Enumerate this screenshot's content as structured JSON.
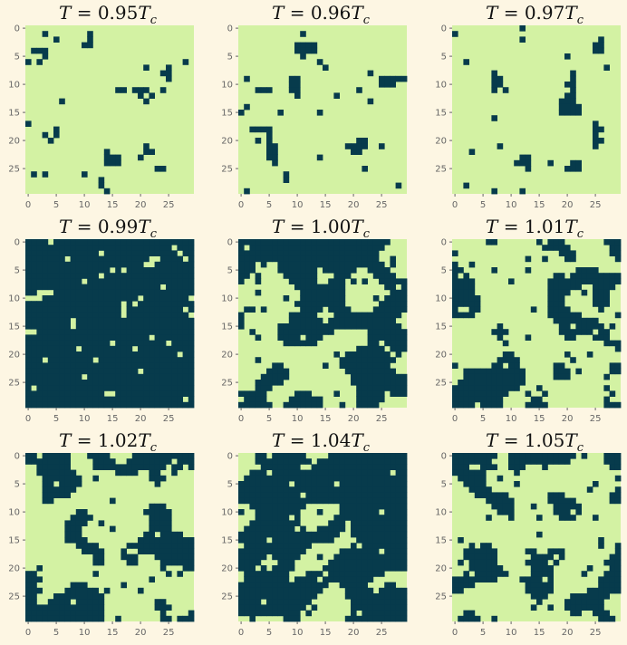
{
  "figure": {
    "background": "#fdf6e3",
    "color_up": "#d3f2a3",
    "color_down": "#073b4c",
    "tick_color": "#666666"
  },
  "chart_data": [
    {
      "type": "heatmap",
      "title": "T = 0.95T_c",
      "title_parts": {
        "value": "0.95"
      },
      "grid_size": 30,
      "xticks": [
        0,
        5,
        10,
        15,
        20,
        25
      ],
      "yticks": [
        0,
        5,
        10,
        15,
        20,
        25
      ],
      "fill": "up",
      "cells": [
        [
          1,
          3
        ],
        [
          1,
          11
        ],
        [
          2,
          5
        ],
        [
          2,
          11
        ],
        [
          3,
          10
        ],
        [
          3,
          11
        ],
        [
          4,
          1
        ],
        [
          4,
          2
        ],
        [
          4,
          3
        ],
        [
          5,
          3
        ],
        [
          6,
          0
        ],
        [
          6,
          2
        ],
        [
          6,
          28
        ],
        [
          7,
          21
        ],
        [
          7,
          25
        ],
        [
          8,
          24
        ],
        [
          8,
          25
        ],
        [
          9,
          25
        ],
        [
          11,
          16
        ],
        [
          11,
          17
        ],
        [
          11,
          19
        ],
        [
          11,
          20
        ],
        [
          11,
          21
        ],
        [
          11,
          24
        ],
        [
          12,
          20
        ],
        [
          12,
          22
        ],
        [
          13,
          6
        ],
        [
          13,
          21
        ],
        [
          17,
          0
        ],
        [
          18,
          5
        ],
        [
          19,
          3
        ],
        [
          19,
          5
        ],
        [
          20,
          4
        ],
        [
          21,
          21
        ],
        [
          22,
          21
        ],
        [
          22,
          14
        ],
        [
          22,
          22
        ],
        [
          23,
          14
        ],
        [
          23,
          15
        ],
        [
          23,
          16
        ],
        [
          23,
          20
        ],
        [
          24,
          14
        ],
        [
          24,
          15
        ],
        [
          24,
          16
        ],
        [
          25,
          23
        ],
        [
          25,
          24
        ],
        [
          26,
          1
        ],
        [
          26,
          3
        ],
        [
          26,
          10
        ],
        [
          27,
          13
        ],
        [
          28,
          13
        ],
        [
          29,
          14
        ]
      ]
    },
    {
      "type": "heatmap",
      "title": "T = 0.96T_c",
      "title_parts": {
        "value": "0.96"
      },
      "grid_size": 30,
      "xticks": [
        0,
        5,
        10,
        15,
        20,
        25
      ],
      "yticks": [
        0,
        5,
        10,
        15,
        20,
        25
      ],
      "fill": "up",
      "cells": [
        [
          1,
          11
        ],
        [
          3,
          10
        ],
        [
          3,
          11
        ],
        [
          3,
          12
        ],
        [
          3,
          13
        ],
        [
          4,
          10
        ],
        [
          4,
          11
        ],
        [
          4,
          12
        ],
        [
          4,
          13
        ],
        [
          5,
          11
        ],
        [
          6,
          14
        ],
        [
          7,
          15
        ],
        [
          8,
          23
        ],
        [
          9,
          9
        ],
        [
          9,
          10
        ],
        [
          9,
          1
        ],
        [
          9,
          25
        ],
        [
          9,
          26
        ],
        [
          9,
          27
        ],
        [
          9,
          28
        ],
        [
          9,
          29
        ],
        [
          10,
          9
        ],
        [
          10,
          10
        ],
        [
          10,
          25
        ],
        [
          10,
          26
        ],
        [
          10,
          27
        ],
        [
          11,
          3
        ],
        [
          11,
          4
        ],
        [
          11,
          5
        ],
        [
          11,
          9
        ],
        [
          11,
          10
        ],
        [
          11,
          21
        ],
        [
          12,
          10
        ],
        [
          12,
          17
        ],
        [
          13,
          23
        ],
        [
          14,
          1
        ],
        [
          15,
          0
        ],
        [
          15,
          7
        ],
        [
          15,
          14
        ],
        [
          18,
          2
        ],
        [
          18,
          3
        ],
        [
          18,
          4
        ],
        [
          18,
          5
        ],
        [
          19,
          5
        ],
        [
          20,
          3
        ],
        [
          20,
          5
        ],
        [
          20,
          21
        ],
        [
          20,
          22
        ],
        [
          21,
          5
        ],
        [
          21,
          6
        ],
        [
          21,
          19
        ],
        [
          21,
          20
        ],
        [
          21,
          21
        ],
        [
          21,
          22
        ],
        [
          21,
          25
        ],
        [
          22,
          5
        ],
        [
          22,
          6
        ],
        [
          22,
          20
        ],
        [
          22,
          21
        ],
        [
          23,
          5
        ],
        [
          23,
          6
        ],
        [
          23,
          14
        ],
        [
          24,
          6
        ],
        [
          25,
          22
        ],
        [
          26,
          8
        ],
        [
          27,
          8
        ],
        [
          28,
          28
        ],
        [
          29,
          1
        ]
      ]
    },
    {
      "type": "heatmap",
      "title": "T = 0.97T_c",
      "title_parts": {
        "value": "0.97"
      },
      "grid_size": 30,
      "xticks": [
        0,
        5,
        10,
        15,
        20,
        25
      ],
      "yticks": [
        0,
        5,
        10,
        15,
        20,
        25
      ],
      "fill": "up",
      "cells": [
        [
          0,
          12
        ],
        [
          1,
          0
        ],
        [
          2,
          12
        ],
        [
          2,
          26
        ],
        [
          3,
          25
        ],
        [
          3,
          26
        ],
        [
          4,
          25
        ],
        [
          4,
          26
        ],
        [
          5,
          20
        ],
        [
          6,
          2
        ],
        [
          7,
          27
        ],
        [
          8,
          7
        ],
        [
          8,
          21
        ],
        [
          9,
          7
        ],
        [
          9,
          8
        ],
        [
          9,
          21
        ],
        [
          10,
          7
        ],
        [
          10,
          8
        ],
        [
          10,
          20
        ],
        [
          10,
          21
        ],
        [
          11,
          7
        ],
        [
          11,
          9
        ],
        [
          11,
          21
        ],
        [
          12,
          20
        ],
        [
          12,
          21
        ],
        [
          13,
          19
        ],
        [
          13,
          20
        ],
        [
          13,
          21
        ],
        [
          14,
          19
        ],
        [
          14,
          20
        ],
        [
          14,
          21
        ],
        [
          14,
          22
        ],
        [
          15,
          19
        ],
        [
          15,
          20
        ],
        [
          15,
          21
        ],
        [
          15,
          22
        ],
        [
          16,
          7
        ],
        [
          17,
          25
        ],
        [
          18,
          25
        ],
        [
          18,
          26
        ],
        [
          19,
          25
        ],
        [
          20,
          25
        ],
        [
          20,
          26
        ],
        [
          21,
          25
        ],
        [
          21,
          8
        ],
        [
          22,
          3
        ],
        [
          23,
          13
        ],
        [
          23,
          12
        ],
        [
          24,
          11
        ],
        [
          24,
          12
        ],
        [
          24,
          13
        ],
        [
          24,
          17
        ],
        [
          25,
          13
        ],
        [
          24,
          21
        ],
        [
          24,
          22
        ],
        [
          25,
          20
        ],
        [
          25,
          21
        ],
        [
          25,
          22
        ],
        [
          28,
          2
        ],
        [
          29,
          12
        ],
        [
          29,
          7
        ]
      ]
    },
    {
      "type": "heatmap",
      "title": "T = 0.99T_c",
      "title_parts": {
        "value": "0.99"
      },
      "grid_size": 30,
      "xticks": [
        0,
        5,
        10,
        15,
        20,
        25
      ],
      "yticks": [
        0,
        5,
        10,
        15,
        20,
        25
      ],
      "fill": "down",
      "cells": [
        [
          0,
          4
        ],
        [
          1,
          26
        ],
        [
          2,
          13
        ],
        [
          2,
          27
        ],
        [
          3,
          7
        ],
        [
          3,
          22
        ],
        [
          3,
          23
        ],
        [
          3,
          28
        ],
        [
          4,
          21
        ],
        [
          4,
          22
        ],
        [
          5,
          15
        ],
        [
          5,
          17
        ],
        [
          6,
          13
        ],
        [
          7,
          10
        ],
        [
          8,
          24
        ],
        [
          9,
          2
        ],
        [
          9,
          3
        ],
        [
          9,
          4
        ],
        [
          10,
          0
        ],
        [
          10,
          1
        ],
        [
          10,
          2
        ],
        [
          10,
          20
        ],
        [
          10,
          29
        ],
        [
          11,
          17
        ],
        [
          11,
          19
        ],
        [
          12,
          17
        ],
        [
          13,
          17
        ],
        [
          12,
          28
        ],
        [
          13,
          29
        ],
        [
          14,
          8
        ],
        [
          15,
          8
        ],
        [
          16,
          0
        ],
        [
          16,
          1
        ],
        [
          17,
          22
        ],
        [
          18,
          15
        ],
        [
          18,
          25
        ],
        [
          19,
          9
        ],
        [
          19,
          19
        ],
        [
          20,
          27
        ],
        [
          21,
          3
        ],
        [
          21,
          12
        ],
        [
          23,
          20
        ],
        [
          24,
          10
        ],
        [
          26,
          1
        ],
        [
          27,
          14
        ],
        [
          27,
          15
        ],
        [
          28,
          28
        ]
      ]
    },
    {
      "type": "heatmap",
      "title": "T = 1.00T_c",
      "title_parts": {
        "value": "1.00"
      },
      "grid_size": 30,
      "xticks": [
        0,
        5,
        10,
        15,
        20,
        25
      ],
      "yticks": [
        0,
        5,
        10,
        15,
        20,
        25
      ],
      "fill": "up",
      "cells": []
    },
    {
      "type": "heatmap",
      "title": "T = 1.01T_c",
      "title_parts": {
        "value": "1.01"
      },
      "grid_size": 30,
      "xticks": [
        0,
        5,
        10,
        15,
        20,
        25
      ],
      "yticks": [
        0,
        5,
        10,
        15,
        20,
        25
      ],
      "fill": "up",
      "cells": []
    },
    {
      "type": "heatmap",
      "title": "T = 1.02T_c",
      "title_parts": {
        "value": "1.02"
      },
      "grid_size": 30,
      "xticks": [
        0,
        5,
        10,
        15,
        20,
        25
      ],
      "yticks": [
        0,
        5,
        10,
        15,
        20,
        25
      ],
      "fill": "up",
      "cells": []
    },
    {
      "type": "heatmap",
      "title": "T = 1.04T_c",
      "title_parts": {
        "value": "1.04"
      },
      "grid_size": 30,
      "xticks": [
        0,
        5,
        10,
        15,
        20,
        25
      ],
      "yticks": [
        0,
        5,
        10,
        15,
        20,
        25
      ],
      "fill": "down",
      "cells": []
    },
    {
      "type": "heatmap",
      "title": "T = 1.05T_c",
      "title_parts": {
        "value": "1.05"
      },
      "grid_size": 30,
      "xticks": [
        0,
        5,
        10,
        15,
        20,
        25
      ],
      "yticks": [
        0,
        5,
        10,
        15,
        20,
        25
      ],
      "fill": "up",
      "cells": []
    }
  ]
}
